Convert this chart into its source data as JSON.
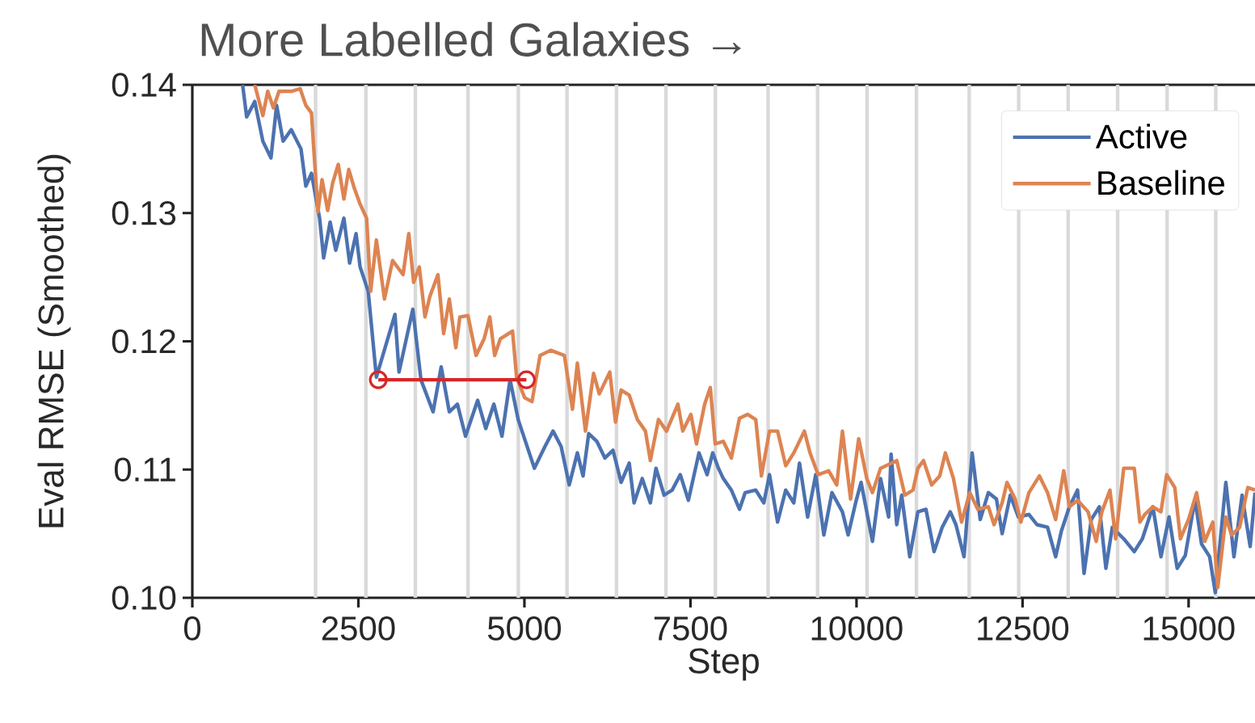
{
  "chart_data": {
    "type": "line",
    "title": "More Labelled Galaxies →",
    "xlabel": "Step",
    "ylabel": "Eval RMSE (Smoothed)",
    "xlim": [
      0,
      16000
    ],
    "ylim": [
      0.1,
      0.14
    ],
    "xticks": [
      0,
      2500,
      5000,
      7500,
      10000,
      12500,
      15000
    ],
    "yticks": [
      {
        "value": 0.1,
        "label": "0.10"
      },
      {
        "value": 0.11,
        "label": "0.11"
      },
      {
        "value": 0.12,
        "label": "0.12"
      },
      {
        "value": 0.13,
        "label": "0.13"
      },
      {
        "value": 0.14,
        "label": "0.14"
      }
    ],
    "legend": "top right",
    "ref_lines": [
      {
        "axis": "x",
        "value": 1856,
        "color": "#d9d9d9"
      },
      {
        "axis": "x",
        "value": 2613,
        "color": "#d9d9d9"
      },
      {
        "axis": "x",
        "value": 3358,
        "color": "#d9d9d9"
      },
      {
        "axis": "x",
        "value": 4151,
        "color": "#d9d9d9"
      },
      {
        "axis": "x",
        "value": 4908,
        "color": "#d9d9d9"
      },
      {
        "axis": "x",
        "value": 5641,
        "color": "#d9d9d9"
      },
      {
        "axis": "x",
        "value": 6386,
        "color": "#d9d9d9"
      },
      {
        "axis": "x",
        "value": 7131,
        "color": "#d9d9d9"
      },
      {
        "axis": "x",
        "value": 7875,
        "color": "#d9d9d9"
      },
      {
        "axis": "x",
        "value": 8669,
        "color": "#d9d9d9"
      },
      {
        "axis": "x",
        "value": 9414,
        "color": "#d9d9d9"
      },
      {
        "axis": "x",
        "value": 10159,
        "color": "#d9d9d9"
      },
      {
        "axis": "x",
        "value": 10903,
        "color": "#d9d9d9"
      },
      {
        "axis": "x",
        "value": 11697,
        "color": "#d9d9d9"
      },
      {
        "axis": "x",
        "value": 12442,
        "color": "#d9d9d9"
      },
      {
        "axis": "x",
        "value": 13187,
        "color": "#d9d9d9"
      },
      {
        "axis": "x",
        "value": 13932,
        "color": "#d9d9d9"
      },
      {
        "axis": "x",
        "value": 14676,
        "color": "#d9d9d9"
      },
      {
        "axis": "x",
        "value": 15409,
        "color": "#d9d9d9"
      }
    ],
    "series": [
      {
        "name": "Active",
        "color": "#4c72b0",
        "x": [
          757,
          818,
          940,
          1062,
          1184,
          1269,
          1367,
          1489,
          1636,
          1709,
          1794,
          1916,
          1977,
          2075,
          2160,
          2282,
          2368,
          2465,
          2526,
          2648,
          2771,
          3051,
          3112,
          3320,
          3442,
          3625,
          3747,
          3869,
          3991,
          4113,
          4296,
          4418,
          4540,
          4662,
          4784,
          4906,
          5150,
          5309,
          5431,
          5553,
          5675,
          5797,
          5883,
          5968,
          6090,
          6212,
          6334,
          6456,
          6578,
          6651,
          6774,
          6896,
          6981,
          7103,
          7225,
          7347,
          7469,
          7628,
          7750,
          7835,
          7921,
          7994,
          8116,
          8238,
          8324,
          8483,
          8604,
          8690,
          8812,
          8934,
          9056,
          9142,
          9264,
          9386,
          9508,
          9630,
          9788,
          9874,
          9996,
          10069,
          10240,
          10362,
          10484,
          10521,
          10606,
          10680,
          10802,
          10924,
          11046,
          11168,
          11290,
          11412,
          11497,
          11619,
          11741,
          11863,
          11985,
          12107,
          12193,
          12315,
          12437,
          12596,
          12718,
          12876,
          12998,
          13084,
          13206,
          13328,
          13426,
          13535,
          13657,
          13755,
          13852,
          14023,
          14182,
          14304,
          14462,
          14584,
          14706,
          14828,
          14950,
          15097,
          15195,
          15317,
          15402,
          15561,
          15683,
          15805,
          15927,
          16000
        ],
        "values": [
          0.14,
          0.1375,
          0.1387,
          0.1356,
          0.1343,
          0.1384,
          0.1356,
          0.1365,
          0.135,
          0.1321,
          0.1331,
          0.1296,
          0.1265,
          0.1293,
          0.1271,
          0.1296,
          0.1261,
          0.1284,
          0.1258,
          0.1239,
          0.1172,
          0.1221,
          0.1176,
          0.1225,
          0.117,
          0.1145,
          0.118,
          0.1145,
          0.1151,
          0.1126,
          0.1154,
          0.1132,
          0.1151,
          0.1126,
          0.117,
          0.1139,
          0.1101,
          0.1118,
          0.113,
          0.1118,
          0.1088,
          0.1113,
          0.1095,
          0.1128,
          0.1122,
          0.1109,
          0.1115,
          0.109,
          0.1105,
          0.1074,
          0.1093,
          0.1074,
          0.1101,
          0.108,
          0.1084,
          0.1096,
          0.1076,
          0.1113,
          0.1096,
          0.1113,
          0.1101,
          0.1093,
          0.1084,
          0.1069,
          0.1082,
          0.1084,
          0.1074,
          0.1096,
          0.1059,
          0.1084,
          0.1074,
          0.1105,
          0.1063,
          0.1096,
          0.1049,
          0.1082,
          0.1067,
          0.1049,
          0.1076,
          0.109,
          0.1044,
          0.1093,
          0.1063,
          0.1112,
          0.1057,
          0.108,
          0.1032,
          0.1067,
          0.1069,
          0.1036,
          0.1055,
          0.1067,
          0.1057,
          0.1032,
          0.1113,
          0.1061,
          0.1082,
          0.1077,
          0.105,
          0.108,
          0.1063,
          0.1065,
          0.1057,
          0.1055,
          0.1032,
          0.1052,
          0.1071,
          0.1084,
          0.1019,
          0.1061,
          0.1071,
          0.1023,
          0.1055,
          0.1046,
          0.1036,
          0.1046,
          0.1071,
          0.1032,
          0.1063,
          0.1023,
          0.1033,
          0.1077,
          0.1042,
          0.1032,
          0.1004,
          0.109,
          0.1032,
          0.108,
          0.104,
          0.1082
        ]
      },
      {
        "name": "Baseline",
        "color": "#dd8452",
        "x": [
          940,
          1062,
          1135,
          1220,
          1306,
          1501,
          1623,
          1709,
          1794,
          1831,
          1892,
          1953,
          2038,
          2111,
          2197,
          2282,
          2355,
          2441,
          2526,
          2624,
          2685,
          2771,
          2893,
          3015,
          3173,
          3259,
          3332,
          3417,
          3503,
          3576,
          3698,
          3784,
          3869,
          3967,
          4028,
          4150,
          4272,
          4394,
          4479,
          4552,
          4638,
          4821,
          4882,
          5004,
          5114,
          5236,
          5395,
          5602,
          5724,
          5797,
          5919,
          6041,
          6127,
          6285,
          6371,
          6456,
          6578,
          6700,
          6822,
          6896,
          7018,
          7140,
          7311,
          7384,
          7506,
          7591,
          7714,
          7799,
          7872,
          7994,
          8116,
          8238,
          8360,
          8483,
          8568,
          8690,
          8812,
          8934,
          9056,
          9215,
          9300,
          9422,
          9581,
          9703,
          9788,
          9911,
          10033,
          10155,
          10240,
          10362,
          10606,
          10728,
          10850,
          10924,
          11009,
          11131,
          11253,
          11338,
          11460,
          11582,
          11705,
          11827,
          11985,
          12071,
          12193,
          12266,
          12388,
          12474,
          12596,
          12754,
          12876,
          12998,
          13120,
          13206,
          13328,
          13487,
          13609,
          13694,
          13816,
          13901,
          14023,
          14182,
          14267,
          14340,
          14462,
          14584,
          14670,
          14792,
          14877,
          14999,
          15121,
          15243,
          15365,
          15439,
          15561,
          15647,
          15769,
          15891,
          16000
        ],
        "values": [
          0.14,
          0.1376,
          0.1395,
          0.1382,
          0.1395,
          0.1395,
          0.1397,
          0.1384,
          0.1378,
          0.1348,
          0.1301,
          0.1326,
          0.1302,
          0.1323,
          0.1338,
          0.1311,
          0.1334,
          0.1319,
          0.1307,
          0.1296,
          0.1239,
          0.1279,
          0.1233,
          0.1263,
          0.1252,
          0.1284,
          0.1246,
          0.1258,
          0.1219,
          0.1235,
          0.1252,
          0.1206,
          0.1233,
          0.1195,
          0.1219,
          0.122,
          0.1189,
          0.1202,
          0.1219,
          0.1189,
          0.1202,
          0.1208,
          0.1172,
          0.1156,
          0.1153,
          0.1189,
          0.1193,
          0.1189,
          0.1147,
          0.1183,
          0.113,
          0.1175,
          0.1159,
          0.1176,
          0.1137,
          0.1162,
          0.1158,
          0.1139,
          0.113,
          0.1107,
          0.1139,
          0.113,
          0.1151,
          0.113,
          0.1143,
          0.112,
          0.1151,
          0.1164,
          0.112,
          0.1122,
          0.1109,
          0.114,
          0.1143,
          0.1139,
          0.1095,
          0.113,
          0.113,
          0.1103,
          0.1113,
          0.113,
          0.1113,
          0.1096,
          0.1099,
          0.1088,
          0.113,
          0.1077,
          0.1124,
          0.1093,
          0.1082,
          0.1101,
          0.1107,
          0.108,
          0.1084,
          0.1101,
          0.1107,
          0.1088,
          0.1095,
          0.1113,
          0.1093,
          0.1059,
          0.1082,
          0.1069,
          0.1071,
          0.1057,
          0.1074,
          0.109,
          0.1077,
          0.1059,
          0.1082,
          0.1095,
          0.1082,
          0.1061,
          0.1099,
          0.1071,
          0.1076,
          0.1067,
          0.1044,
          0.1067,
          0.1084,
          0.1046,
          0.1101,
          0.1101,
          0.1059,
          0.1065,
          0.1071,
          0.1067,
          0.1096,
          0.1086,
          0.1046,
          0.1061,
          0.1082,
          0.1044,
          0.1059,
          0.1008,
          0.1063,
          0.1049,
          0.1055,
          0.1086,
          0.1084
        ]
      },
      {
        "color": "#d62728",
        "marker": "circle",
        "x": [
          2800,
          5030
        ],
        "values": [
          0.117,
          0.117
        ]
      }
    ]
  }
}
